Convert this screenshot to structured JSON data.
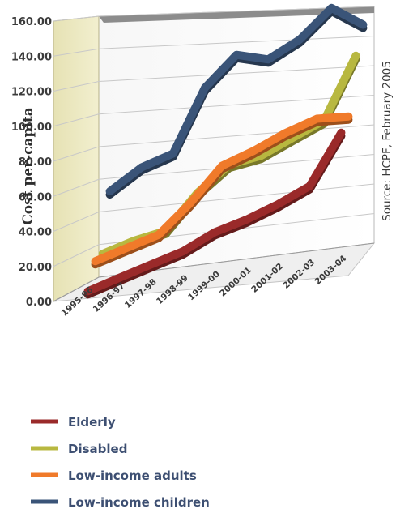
{
  "chart_data": {
    "type": "line",
    "ylabel": "Cost per-capita",
    "source": "Source: HCPF, February 2005",
    "ylim": [
      0,
      160
    ],
    "yticks": [
      "0.00",
      "20.00",
      "40.00",
      "60.00",
      "80.00",
      "100.00",
      "120.00",
      "140.00",
      "160.00"
    ],
    "categories": [
      "1995-96",
      "1996-97",
      "1997-98",
      "1998-99",
      "1999-00",
      "2000-01",
      "2001-02",
      "2002-03",
      "2003-04"
    ],
    "grid": true,
    "legend_position": "bottom",
    "series": [
      {
        "name": "Low-income children",
        "color": "#3a5478",
        "values": [
          52,
          65,
          72,
          112,
          132,
          128,
          140,
          160,
          148
        ]
      },
      {
        "name": "Disabled",
        "color": "#b8b840",
        "values": [
          18,
          24,
          28,
          50,
          66,
          70,
          80,
          90,
          132
        ]
      },
      {
        "name": "Low-income adults",
        "color": "#f07a2a",
        "values": [
          18,
          24,
          30,
          48,
          70,
          78,
          88,
          96,
          96
        ]
      },
      {
        "name": "Elderly",
        "color": "#9a2a2a",
        "values": [
          4,
          10,
          16,
          22,
          32,
          38,
          46,
          56,
          90
        ]
      }
    ],
    "legend_order": [
      "Elderly",
      "Disabled",
      "Low-income adults",
      "Low-income children"
    ]
  }
}
